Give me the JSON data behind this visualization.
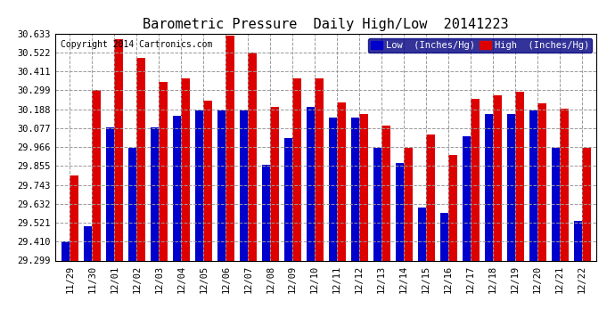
{
  "title": "Barometric Pressure  Daily High/Low  20141223",
  "copyright": "Copyright 2014 Cartronics.com",
  "legend_low": "Low  (Inches/Hg)",
  "legend_high": "High  (Inches/Hg)",
  "dates": [
    "11/29",
    "11/30",
    "12/01",
    "12/02",
    "12/03",
    "12/04",
    "12/05",
    "12/06",
    "12/07",
    "12/08",
    "12/09",
    "12/10",
    "12/11",
    "12/12",
    "12/13",
    "12/14",
    "12/15",
    "12/16",
    "12/17",
    "12/18",
    "12/19",
    "12/20",
    "12/21",
    "12/22"
  ],
  "low": [
    29.41,
    29.5,
    30.08,
    29.96,
    30.08,
    30.15,
    30.18,
    30.18,
    30.18,
    29.86,
    30.02,
    30.2,
    30.14,
    30.14,
    29.96,
    29.87,
    29.61,
    29.58,
    30.03,
    30.16,
    30.16,
    30.18,
    29.96,
    29.53
  ],
  "high": [
    29.8,
    30.3,
    30.6,
    30.49,
    30.35,
    30.37,
    30.24,
    30.62,
    30.52,
    30.2,
    30.37,
    30.37,
    30.23,
    30.16,
    30.09,
    29.96,
    30.04,
    29.92,
    30.25,
    30.27,
    30.29,
    30.22,
    30.19,
    29.96
  ],
  "ymin": 29.299,
  "ymax": 30.633,
  "yticks": [
    29.299,
    29.41,
    29.521,
    29.632,
    29.743,
    29.855,
    29.966,
    30.077,
    30.188,
    30.299,
    30.411,
    30.522,
    30.633
  ],
  "bar_width": 0.38,
  "low_color": "#0000cc",
  "high_color": "#dd0000",
  "bg_color": "#ffffff",
  "grid_color": "#999999",
  "title_fontsize": 11,
  "tick_fontsize": 7.5,
  "legend_fontsize": 7.5,
  "copyright_fontsize": 7
}
